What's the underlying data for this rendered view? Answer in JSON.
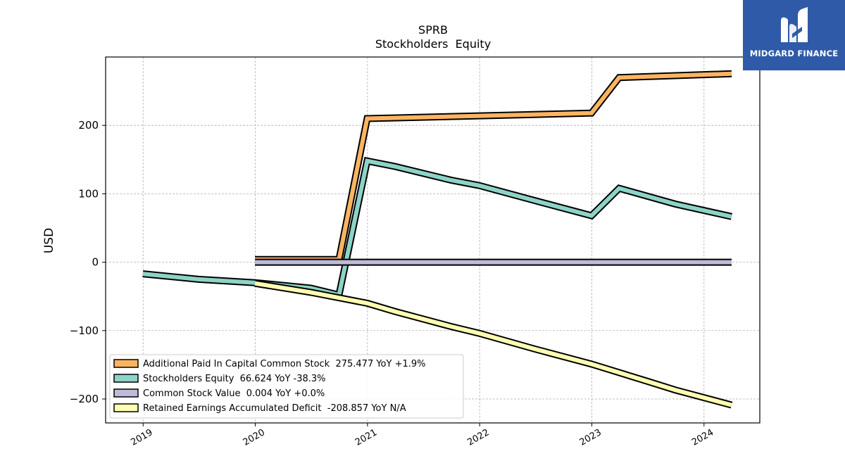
{
  "chart_data": {
    "type": "line",
    "title": "SPRB",
    "subtitle": "Stockholders  Equity",
    "ylabel": "USD",
    "xlabel": "",
    "xlim": [
      "2018-09-01",
      "2024-07-01"
    ],
    "ylim": [
      -235,
      300
    ],
    "yticks": [
      -200,
      -100,
      0,
      100,
      200
    ],
    "xticks": [
      "2019",
      "2020",
      "2021",
      "2022",
      "2023",
      "2024"
    ],
    "grid": true,
    "legend_position": "lower-left",
    "series": [
      {
        "name": "Additional Paid In Capital Common Stock",
        "legend": "Additional Paid In Capital Common Stock  275.477 YoY +1.9%",
        "color": "#fdb462",
        "points": [
          [
            "2019-12-31",
            4
          ],
          [
            "2020-09-30",
            4
          ],
          [
            "2020-12-31",
            210
          ],
          [
            "2022-12-31",
            218
          ],
          [
            "2023-03-31",
            270
          ],
          [
            "2024-03-31",
            275.477
          ]
        ]
      },
      {
        "name": "Stockholders Equity",
        "legend": "Stockholders Equity  66.624 YoY -38.3%",
        "color": "#8dd3c7",
        "points": [
          [
            "2018-12-31",
            -17
          ],
          [
            "2019-06-30",
            -25
          ],
          [
            "2019-12-31",
            -30
          ],
          [
            "2020-06-30",
            -38
          ],
          [
            "2020-09-30",
            -48
          ],
          [
            "2020-12-31",
            148
          ],
          [
            "2021-03-31",
            140
          ],
          [
            "2021-09-30",
            120
          ],
          [
            "2021-12-31",
            112
          ],
          [
            "2022-06-30",
            90
          ],
          [
            "2022-12-31",
            68
          ],
          [
            "2023-03-31",
            108
          ],
          [
            "2023-09-30",
            85
          ],
          [
            "2024-03-31",
            66.624
          ]
        ]
      },
      {
        "name": "Common Stock Value",
        "legend": "Common Stock Value  0.004 YoY +0.0%",
        "color": "#bebada",
        "points": [
          [
            "2019-12-31",
            0.004
          ],
          [
            "2024-03-31",
            0.004
          ]
        ]
      },
      {
        "name": "Retained Earnings Accumulated Deficit",
        "legend": "Retained Earnings Accumulated Deficit  -208.857 YoY N/A",
        "color": "#ffffb3",
        "points": [
          [
            "2019-12-31",
            -31
          ],
          [
            "2020-06-30",
            -44
          ],
          [
            "2020-12-31",
            -60
          ],
          [
            "2021-03-31",
            -72
          ],
          [
            "2021-09-30",
            -94
          ],
          [
            "2021-12-31",
            -104
          ],
          [
            "2022-06-30",
            -127
          ],
          [
            "2022-12-31",
            -149
          ],
          [
            "2023-06-30",
            -174
          ],
          [
            "2023-09-30",
            -187
          ],
          [
            "2024-03-31",
            -208.857
          ]
        ]
      }
    ]
  },
  "logo": {
    "text": "MIDGARD FINANCE",
    "color": "#2f5aa8"
  }
}
